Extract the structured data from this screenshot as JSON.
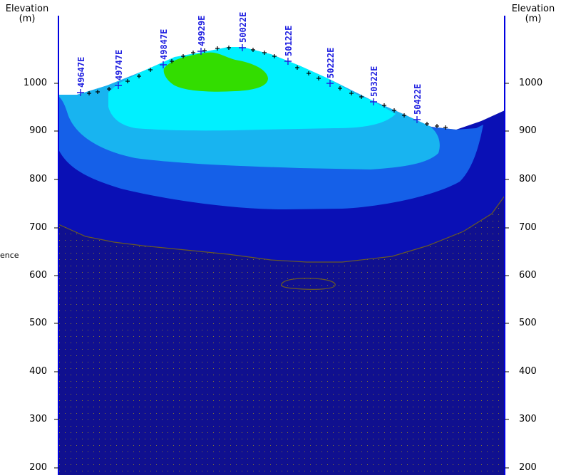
{
  "axis": {
    "title_left": "Elevation",
    "unit_left": "(m)",
    "title_right": "Elevation",
    "unit_right": "(m)",
    "ticks": [
      "1000",
      "900",
      "800",
      "700",
      "600",
      "500",
      "400",
      "300",
      "200"
    ]
  },
  "side_label": "ence",
  "stations": [
    "49647E",
    "49747E",
    "49847E",
    "49929E",
    "50022E",
    "50122E",
    "50222E",
    "50322E",
    "50422E"
  ],
  "colors": {
    "deep": "#10108f",
    "dark_blue": "#0a10b5",
    "mid_blue": "#1560e8",
    "light_blue": "#18b4f0",
    "cyan": "#00f0ff",
    "green": "#33dd00",
    "axis_line": "#0000e0",
    "station_blue": "#1f1fe0",
    "dots": "#8b7a2a"
  }
}
